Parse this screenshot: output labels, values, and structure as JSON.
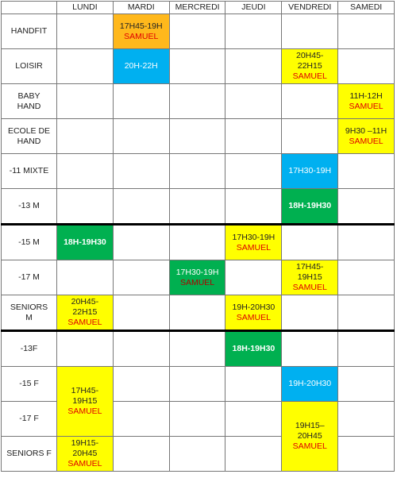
{
  "days": [
    "LUNDI",
    "MARDI",
    "MERCREDI",
    "JEUDI",
    "VENDREDI",
    "SAMEDI"
  ],
  "rows": [
    {
      "label": "HANDFIT",
      "slots": [
        {
          "time": "17H45-19H",
          "coach": "SAMUEL"
        }
      ]
    },
    {
      "label": "LOISIR",
      "slots": [
        {
          "time": "20H-22H"
        },
        {
          "time": "20H45-22H15",
          "coach": "SAMUEL"
        }
      ]
    },
    {
      "label": "BABY HAND",
      "slots": [
        {
          "time": "11H-12H",
          "coach": "SAMUEL"
        }
      ]
    },
    {
      "label": "ECOLE DE HAND",
      "slots": [
        {
          "time": "9H30 –11H",
          "coach": "SAMUEL"
        }
      ]
    },
    {
      "label": "-11 MIXTE",
      "slots": [
        {
          "time": "17H30-19H"
        }
      ]
    },
    {
      "label": "-13 M",
      "slots": [
        {
          "time": "18H-19H30"
        }
      ]
    },
    {
      "label": "-15 M",
      "slots": [
        {
          "time": "18H-19H30"
        },
        {
          "time": "17H30-19H",
          "coach": "SAMUEL"
        }
      ]
    },
    {
      "label": "-17 M",
      "slots": [
        {
          "time": "17H30-19H",
          "coach": "SAMUEL"
        },
        {
          "time": "17H45-19H15",
          "coach": "SAMUEL"
        }
      ]
    },
    {
      "label": "SENIORS M",
      "slots": [
        {
          "time": "20H45-22H15",
          "coach": "SAMUEL"
        },
        {
          "time": "19H-20H30",
          "coach": "SAMUEL"
        }
      ]
    },
    {
      "label": "-13F",
      "slots": [
        {
          "time": "18H-19H30"
        }
      ]
    },
    {
      "label": "-15 F",
      "slots": [
        {
          "time": "17H45-19H15",
          "coach": "SAMUEL"
        },
        {
          "time": "19H-20H30"
        }
      ]
    },
    {
      "label": "-17 F",
      "slots": [
        {
          "time": "19H15–20H45",
          "coach": "SAMUEL"
        }
      ]
    },
    {
      "label": "SENIORS F",
      "slots": [
        {
          "time": "19H15-20H45",
          "coach": "SAMUEL"
        }
      ]
    }
  ]
}
